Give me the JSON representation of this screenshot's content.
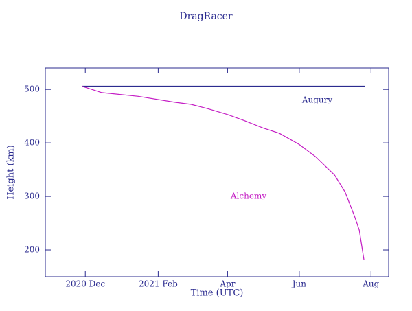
{
  "chart_data": {
    "type": "line",
    "title": "DragRacer",
    "xlabel": "Time (UTC)",
    "ylabel": "Height (km)",
    "xlim": [
      "2020-10-28",
      "2021-08-16"
    ],
    "xticks": [
      {
        "value": "2020-12-01",
        "label": "2020 Dec"
      },
      {
        "value": "2021-02-01",
        "label": "2021 Feb"
      },
      {
        "value": "2021-04-01",
        "label": "Apr"
      },
      {
        "value": "2021-06-01",
        "label": "Jun"
      },
      {
        "value": "2021-08-01",
        "label": "Aug"
      }
    ],
    "ylim": [
      150,
      540
    ],
    "yticks": [
      200,
      300,
      400,
      500
    ],
    "series": [
      {
        "name": "Augury",
        "color": "#2b2b8f",
        "x": [
          "2020-11-28",
          "2021-07-27"
        ],
        "values": [
          506,
          506
        ]
      },
      {
        "name": "Alchemy",
        "color": "#c41cc4",
        "x": [
          "2020-11-28",
          "2020-12-15",
          "2021-01-15",
          "2021-02-15",
          "2021-03-01",
          "2021-03-15",
          "2021-04-01",
          "2021-04-15",
          "2021-05-01",
          "2021-05-15",
          "2021-06-01",
          "2021-06-15",
          "2021-07-01",
          "2021-07-10",
          "2021-07-18",
          "2021-07-22",
          "2021-07-26"
        ],
        "values": [
          506,
          494,
          487,
          476,
          472,
          464,
          453,
          442,
          428,
          418,
          397,
          374,
          340,
          308,
          263,
          237,
          182
        ]
      }
    ]
  }
}
